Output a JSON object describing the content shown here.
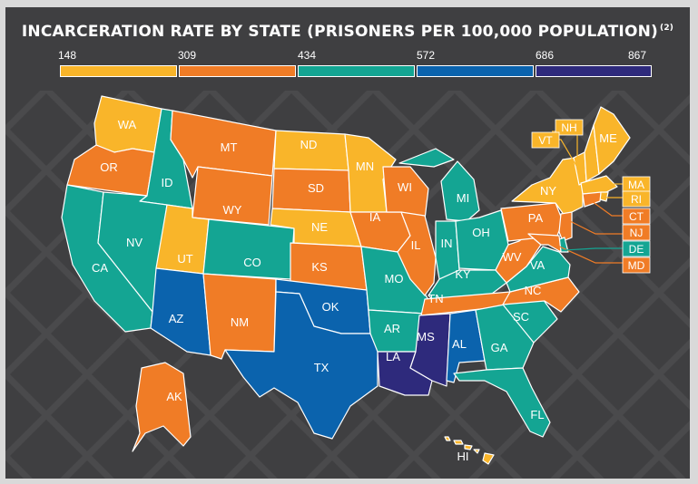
{
  "title": "INCARCERATION RATE BY STATE (PRISONERS PER 100,000 POPULATION)",
  "title_note": "(2)",
  "legend": {
    "breaks": [
      "148",
      "309",
      "434",
      "572",
      "686",
      "867"
    ],
    "colors": [
      "#f9b52a",
      "#f07c26",
      "#14a593",
      "#0b63ad",
      "#2e2a7c"
    ]
  },
  "states": {
    "WA": {
      "label": "WA",
      "color": "#f9b52a"
    },
    "OR": {
      "label": "OR",
      "color": "#f07c26"
    },
    "CA": {
      "label": "CA",
      "color": "#14a593"
    },
    "ID": {
      "label": "ID",
      "color": "#14a593"
    },
    "NV": {
      "label": "NV",
      "color": "#14a593"
    },
    "MT": {
      "label": "MT",
      "color": "#f07c26"
    },
    "WY": {
      "label": "WY",
      "color": "#f07c26"
    },
    "UT": {
      "label": "UT",
      "color": "#f9b52a"
    },
    "CO": {
      "label": "CO",
      "color": "#14a593"
    },
    "AZ": {
      "label": "AZ",
      "color": "#0b63ad"
    },
    "NM": {
      "label": "NM",
      "color": "#f07c26"
    },
    "ND": {
      "label": "ND",
      "color": "#f9b52a"
    },
    "SD": {
      "label": "SD",
      "color": "#f07c26"
    },
    "NE": {
      "label": "NE",
      "color": "#f9b52a"
    },
    "KS": {
      "label": "KS",
      "color": "#f07c26"
    },
    "OK": {
      "label": "OK",
      "color": "#0b63ad"
    },
    "TX": {
      "label": "TX",
      "color": "#0b63ad"
    },
    "MN": {
      "label": "MN",
      "color": "#f9b52a"
    },
    "IA": {
      "label": "IA",
      "color": "#f07c26"
    },
    "MO": {
      "label": "MO",
      "color": "#14a593"
    },
    "AR": {
      "label": "AR",
      "color": "#14a593"
    },
    "LA": {
      "label": "LA",
      "color": "#2e2a7c"
    },
    "WI": {
      "label": "WI",
      "color": "#f07c26"
    },
    "IL": {
      "label": "IL",
      "color": "#f07c26"
    },
    "MI": {
      "label": "MI",
      "color": "#14a593"
    },
    "IN": {
      "label": "IN",
      "color": "#14a593"
    },
    "OH": {
      "label": "OH",
      "color": "#14a593"
    },
    "KY": {
      "label": "KY",
      "color": "#14a593"
    },
    "TN": {
      "label": "TN",
      "color": "#f07c26"
    },
    "MS": {
      "label": "MS",
      "color": "#2e2a7c"
    },
    "AL": {
      "label": "AL",
      "color": "#0b63ad"
    },
    "GA": {
      "label": "GA",
      "color": "#14a593"
    },
    "FL": {
      "label": "FL",
      "color": "#14a593"
    },
    "SC": {
      "label": "SC",
      "color": "#14a593"
    },
    "NC": {
      "label": "NC",
      "color": "#f07c26"
    },
    "VA": {
      "label": "VA",
      "color": "#14a593"
    },
    "WV": {
      "label": "WV",
      "color": "#f07c26"
    },
    "PA": {
      "label": "PA",
      "color": "#f07c26"
    },
    "NY": {
      "label": "NY",
      "color": "#f9b52a"
    },
    "VT": {
      "label": "VT",
      "color": "#f9b52a"
    },
    "NH": {
      "label": "NH",
      "color": "#f9b52a"
    },
    "ME": {
      "label": "ME",
      "color": "#f9b52a"
    },
    "MA": {
      "label": "MA",
      "color": "#f9b52a"
    },
    "RI": {
      "label": "RI",
      "color": "#f9b52a"
    },
    "CT": {
      "label": "CT",
      "color": "#f07c26"
    },
    "NJ": {
      "label": "NJ",
      "color": "#f07c26"
    },
    "DE": {
      "label": "DE",
      "color": "#14a593"
    },
    "MD": {
      "label": "MD",
      "color": "#f07c26"
    },
    "AK": {
      "label": "AK",
      "color": "#f07c26"
    },
    "HI": {
      "label": "HI",
      "color": "#f9b52a"
    }
  }
}
